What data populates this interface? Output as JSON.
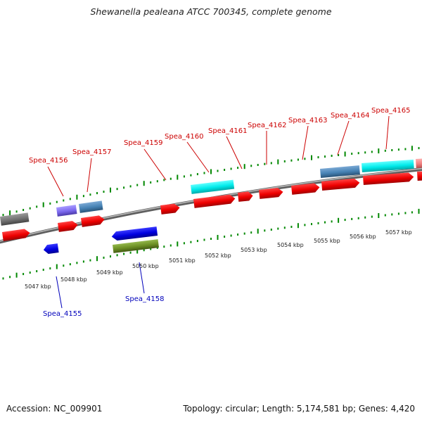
{
  "title": "Shewanella pealeana ATCC 700345, complete genome",
  "footer": {
    "accession": "Accession: NC_009901",
    "summary": "Topology: circular; Length: 5,174,581 bp; Genes: 4,420"
  },
  "kbp_ticks": [
    {
      "label": "5047 kbp"
    },
    {
      "label": "5048 kbp"
    },
    {
      "label": "5049 kbp"
    },
    {
      "label": "5050 kbp"
    },
    {
      "label": "5051 kbp"
    },
    {
      "label": "5052 kbp"
    },
    {
      "label": "5053 kbp"
    },
    {
      "label": "5054 kbp"
    },
    {
      "label": "5055 kbp"
    },
    {
      "label": "5056 kbp"
    },
    {
      "label": "5057 kbp"
    }
  ],
  "gene_labels_top": [
    "Spea_4156",
    "Spea_4157",
    "Spea_4159",
    "Spea_4160",
    "Spea_4161",
    "Spea_4162",
    "Spea_4163",
    "Spea_4164",
    "Spea_4165"
  ],
  "gene_labels_bottom": [
    "Spea_4155",
    "Spea_4158"
  ],
  "colors": {
    "cds": "#ff0000",
    "cds_reverse": "#0000ee",
    "cyan_feature": "#00eeee",
    "steelblue_feature": "#4682b4",
    "purple_feature": "#7b68ee",
    "olive_feature": "#6b8e23",
    "grey_feature": "#707070",
    "pink_feature": "#f08080",
    "tick": "#008800",
    "backbone": "#888888"
  }
}
